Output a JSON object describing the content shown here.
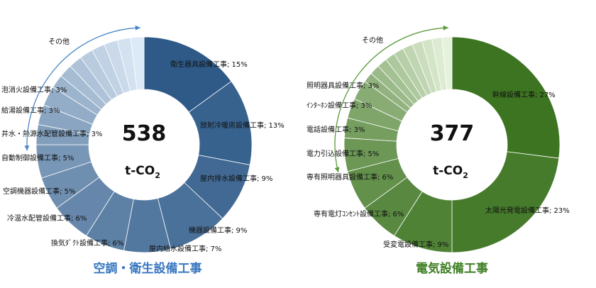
{
  "chart_data": [
    {
      "type": "pie",
      "donut": true,
      "title": "空調・衛生設備工事",
      "title_color": "#3a78c0",
      "center_value": "538",
      "unit_main": "t-CO",
      "unit_sub": "2",
      "others_label": "その他",
      "categories": [
        "衛生器具設備工事",
        "放射冷暖房設備工事",
        "屋内排水設備工事",
        "機器設備工事",
        "屋内給水設備工事",
        "換気ﾀﾞｸﾄ設備工事",
        "冷温水配管設備工事",
        "空調機器設備工事",
        "自動制御設備工事",
        "井水・熱源水配管設備工事",
        "給湯設備工事",
        "泡消火設備工事"
      ],
      "values": [
        15,
        13,
        9,
        9,
        7,
        6,
        6,
        5,
        5,
        3,
        3,
        3
      ],
      "labels": [
        "衛生器具設備工事; 15%",
        "放射冷暖房設備工事; 13%",
        "屋内排水設備工事; 9%",
        "機器設備工事; 9%",
        "屋内給水設備工事; 7%",
        "換気ﾀﾞｸﾄ設備工事; 6%",
        "冷温水配管設備工事; 6%",
        "空調機器設備工事; 5%",
        "自動制御設備工事; 5%",
        "井水・熱源水配管設備工事; 3%",
        "給湯設備工事; 3%",
        "泡消火設備工事; 3%"
      ],
      "other_slices": 8,
      "colors": {
        "dark": "#2f5a88",
        "light": "#dce9f6",
        "arrow": "#4a86c8"
      }
    },
    {
      "type": "pie",
      "donut": true,
      "title": "電気設備工事",
      "title_color": "#3f7f24",
      "center_value": "377",
      "unit_main": "t-CO",
      "unit_sub": "2",
      "others_label": "その他",
      "categories": [
        "幹線設備工事",
        "太陽光発電設備工事",
        "受変電設備工事",
        "専有電灯コンセント設備工事",
        "専有照明器具設備工事",
        "電力引込設備工事",
        "電話設備工事",
        "インターホン設備工事",
        "照明器具設備工事"
      ],
      "values": [
        27,
        23,
        9,
        6,
        6,
        5,
        3,
        3,
        3
      ],
      "labels": [
        "幹線設備工事; 27%",
        "太陽光発電設備工事; 23%",
        "受変電設備工事; 9%",
        "専有電灯ｺﾝｾﾝﾄ設備工事; 6%",
        "専有照明器具設備工事; 6%",
        "電力引込設備工事; 5%",
        "電話設備工事; 3%",
        "ｲﾝﾀｰﾎﾝ設備工事; 3%",
        "照明器具設備工事; 3%"
      ],
      "other_slices": 10,
      "colors": {
        "dark": "#3d7421",
        "light": "#e6f2dc",
        "arrow": "#5a9a3a"
      }
    }
  ]
}
